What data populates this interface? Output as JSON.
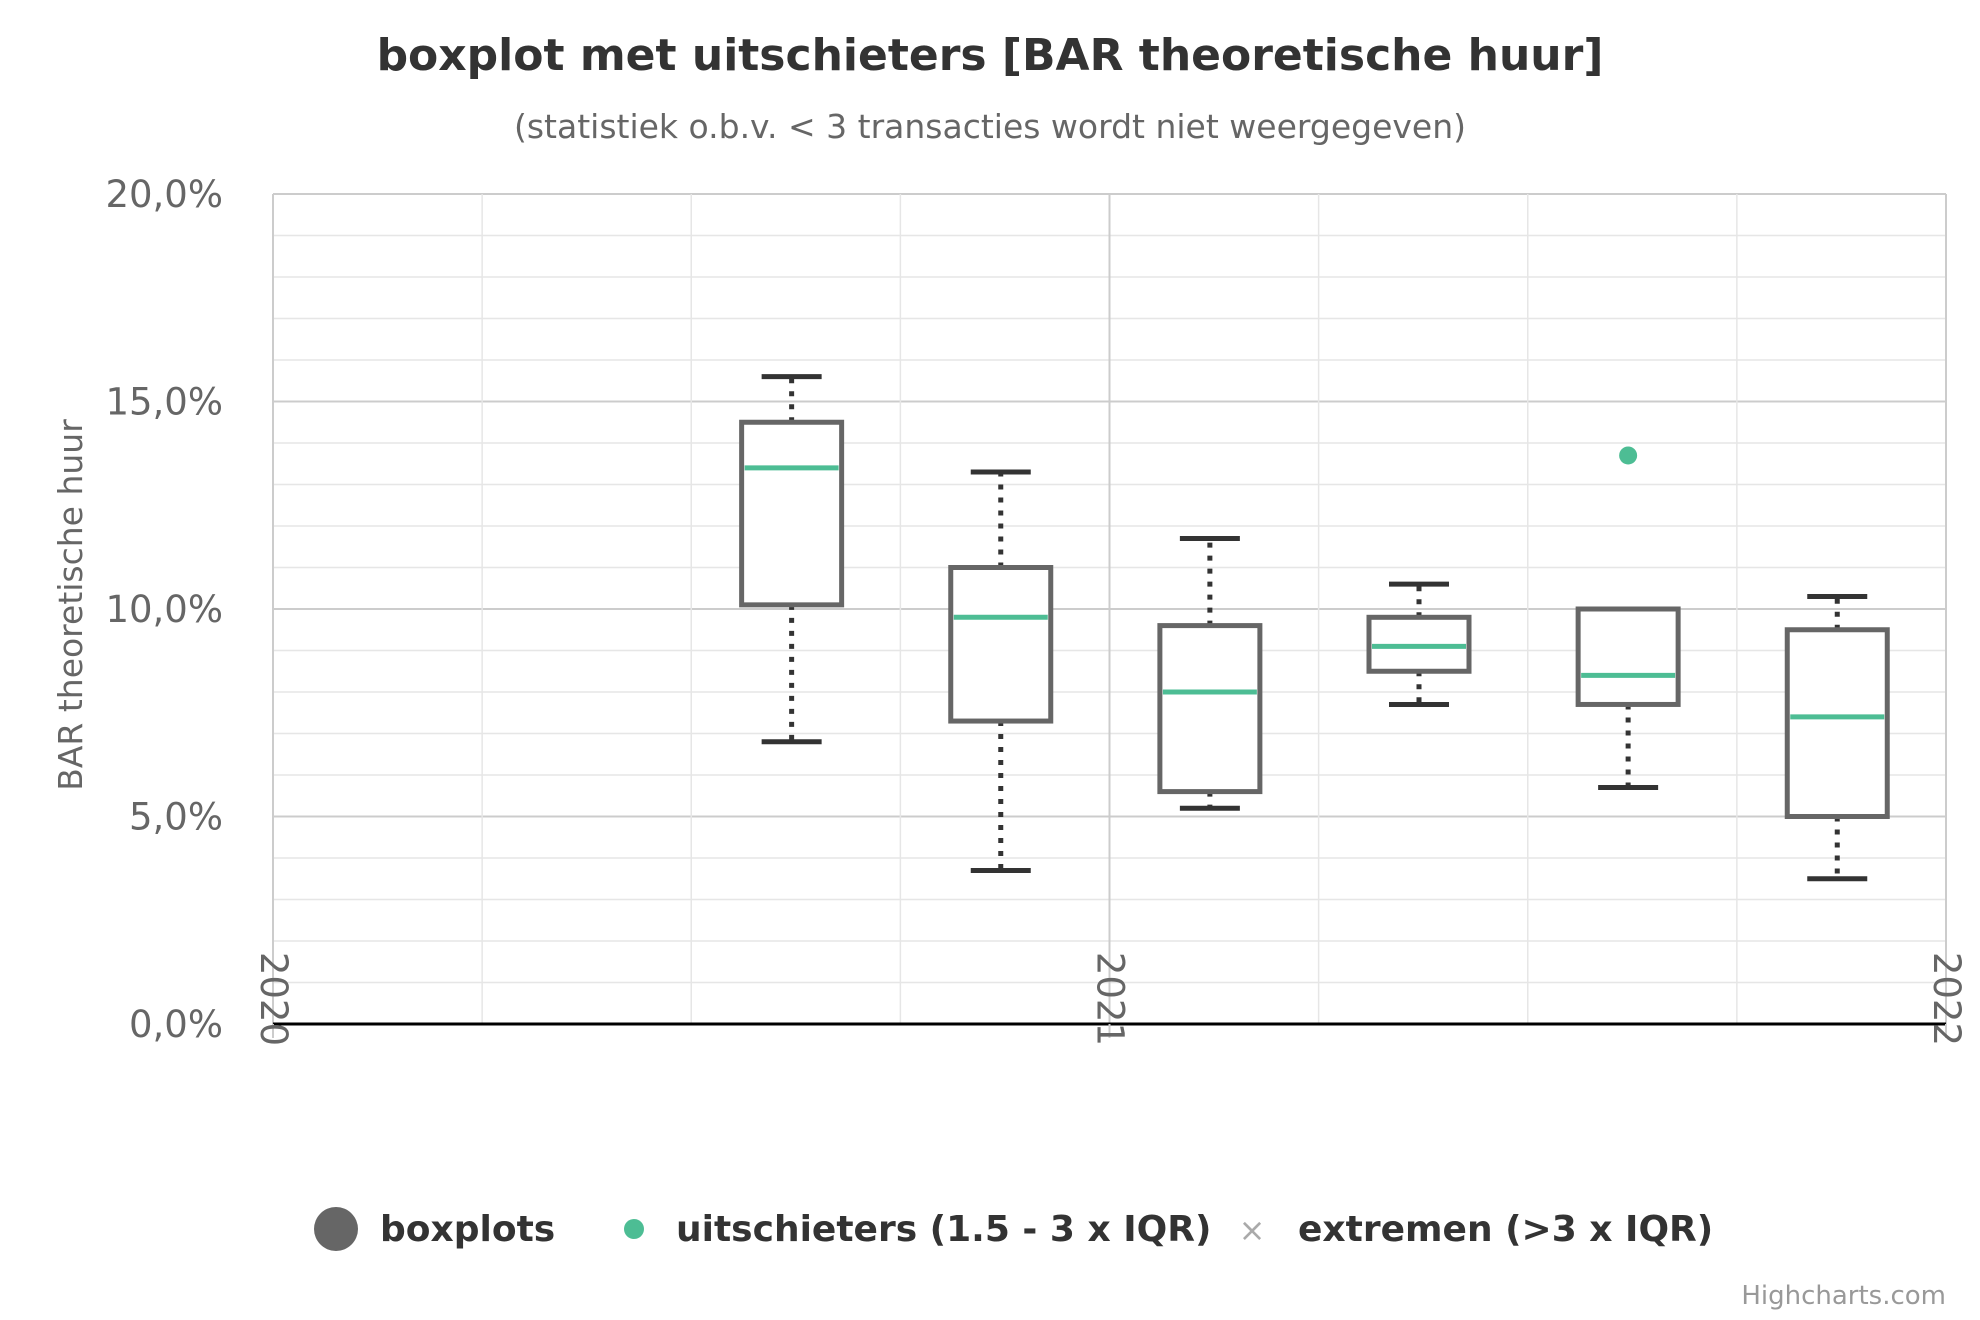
{
  "chart_data": {
    "type": "boxplot",
    "title": "boxplot met uitschieters [BAR theoretische huur]",
    "subtitle": "(statistiek o.b.v. < 3 transacties wordt niet weergegeven)",
    "ylabel": "BAR theoretische huur",
    "xlabel": "",
    "ylim": [
      0,
      20
    ],
    "yticks": [
      "0,0%",
      "5,0%",
      "10,0%",
      "15,0%",
      "20,0%"
    ],
    "xlim": [
      2020,
      2022
    ],
    "xticks": [
      "2020",
      "2021",
      "2022"
    ],
    "grid": true,
    "legend_position": "bottom",
    "colors": {
      "box": "#666666",
      "median": "#4dbd94",
      "whisker": "#333333",
      "outlier": "#4dbd94",
      "extreme": "#aaaaaa"
    },
    "series": [
      {
        "name": "boxplots",
        "boxes": [
          {
            "x": 2020.62,
            "low": 6.8,
            "q1": 10.1,
            "median": 13.4,
            "q3": 14.5,
            "high": 15.6
          },
          {
            "x": 2020.87,
            "low": 3.7,
            "q1": 7.3,
            "median": 9.8,
            "q3": 11.0,
            "high": 13.3
          },
          {
            "x": 2021.12,
            "low": 5.2,
            "q1": 5.6,
            "median": 8.0,
            "q3": 9.6,
            "high": 11.7
          },
          {
            "x": 2021.37,
            "low": 7.7,
            "q1": 8.5,
            "median": 9.1,
            "q3": 9.8,
            "high": 10.6
          },
          {
            "x": 2021.62,
            "low": 5.7,
            "q1": 7.7,
            "median": 8.4,
            "q3": 10.0,
            "high": 10.0
          },
          {
            "x": 2021.87,
            "low": 3.5,
            "q1": 5.0,
            "median": 7.4,
            "q3": 9.5,
            "high": 10.3
          }
        ]
      },
      {
        "name": "uitschieters (1.5 - 3 x IQR)",
        "points": [
          {
            "x": 2021.62,
            "y": 13.7
          }
        ]
      },
      {
        "name": "extremen (>3 x IQR)",
        "points": []
      }
    ]
  },
  "legend": {
    "boxplots": "boxplots",
    "outliers": "uitschieters (1.5 - 3 x IQR)",
    "extremes": "extremen (>3 x IQR)"
  },
  "credits": "Highcharts.com"
}
